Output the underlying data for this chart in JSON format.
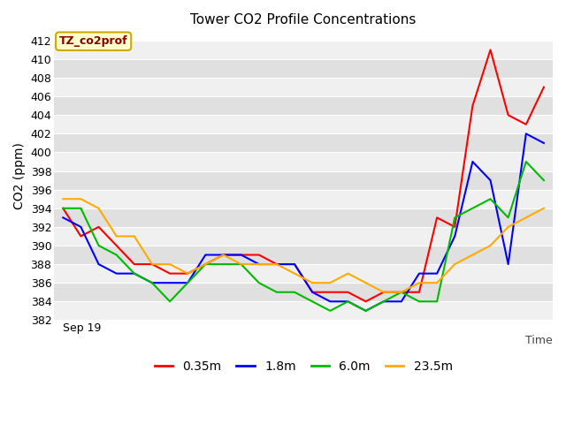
{
  "title": "Tower CO2 Profile Concentrations",
  "xlabel": "Time",
  "ylabel": "CO2 (ppm)",
  "ylim": [
    382,
    413
  ],
  "yticks": [
    382,
    384,
    386,
    388,
    390,
    392,
    394,
    396,
    398,
    400,
    402,
    404,
    406,
    408,
    410,
    412
  ],
  "xlabel_start": "Sep 19",
  "annotation": "TZ_co2prof",
  "annotation_color": "#880000",
  "annotation_bg": "#ffffcc",
  "annotation_border": "#ccaa00",
  "fig_bg": "#ffffff",
  "plot_bg_light": "#f0f0f0",
  "plot_bg_dark": "#e0e0e0",
  "grid_color": "#ffffff",
  "series": {
    "0.35m": {
      "color": "#ff0000",
      "values": [
        394,
        391,
        392,
        390,
        388,
        388,
        387,
        387,
        388,
        389,
        389,
        389,
        388,
        388,
        385,
        385,
        385,
        384,
        385,
        385,
        385,
        393,
        392,
        405,
        411,
        404,
        403,
        407
      ]
    },
    "1.8m": {
      "color": "#0000ff",
      "values": [
        393,
        392,
        388,
        387,
        387,
        386,
        386,
        386,
        389,
        389,
        389,
        388,
        388,
        388,
        385,
        384,
        384,
        383,
        384,
        384,
        387,
        387,
        391,
        399,
        397,
        388,
        402,
        401
      ]
    },
    "6.0m": {
      "color": "#00bb00",
      "values": [
        394,
        394,
        390,
        389,
        387,
        386,
        384,
        386,
        388,
        388,
        388,
        386,
        385,
        385,
        384,
        383,
        384,
        383,
        384,
        385,
        384,
        384,
        393,
        394,
        395,
        393,
        399,
        397
      ]
    },
    "23.5m": {
      "color": "#ffaa00",
      "values": [
        395,
        395,
        394,
        391,
        391,
        388,
        388,
        387,
        388,
        389,
        388,
        388,
        388,
        387,
        386,
        386,
        387,
        386,
        385,
        385,
        386,
        386,
        388,
        389,
        390,
        392,
        393,
        394
      ]
    }
  },
  "legend_entries": [
    "0.35m",
    "1.8m",
    "6.0m",
    "23.5m"
  ],
  "legend_colors": [
    "#ff0000",
    "#0000ff",
    "#00bb00",
    "#ffaa00"
  ]
}
